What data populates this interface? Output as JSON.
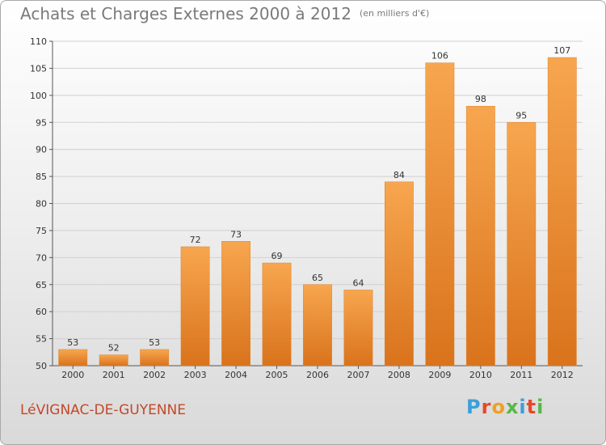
{
  "title": "Achats et Charges Externes 2000 à 2012",
  "unit_note": "(en milliers d'€)",
  "commune": "LéVIGNAC-DE-GUYENNE",
  "logo": {
    "text": "Proxiti",
    "colors": [
      "#3aa0d8",
      "#e8472b",
      "#f0a020",
      "#55b848",
      "#3aa0d8",
      "#e8472b",
      "#55b848"
    ]
  },
  "chart_data": {
    "type": "bar",
    "categories": [
      "2000",
      "2001",
      "2002",
      "2003",
      "2004",
      "2005",
      "2006",
      "2007",
      "2008",
      "2009",
      "2010",
      "2011",
      "2012"
    ],
    "values": [
      53,
      52,
      53,
      72,
      73,
      69,
      65,
      64,
      84,
      106,
      98,
      95,
      107
    ],
    "title": "Achats et Charges Externes 2000 à 2012",
    "ylim": [
      50,
      110
    ],
    "yticks": [
      50,
      55,
      60,
      65,
      70,
      75,
      80,
      85,
      90,
      95,
      100,
      105,
      110
    ],
    "grid": true,
    "bar_color": "#f0953a"
  }
}
